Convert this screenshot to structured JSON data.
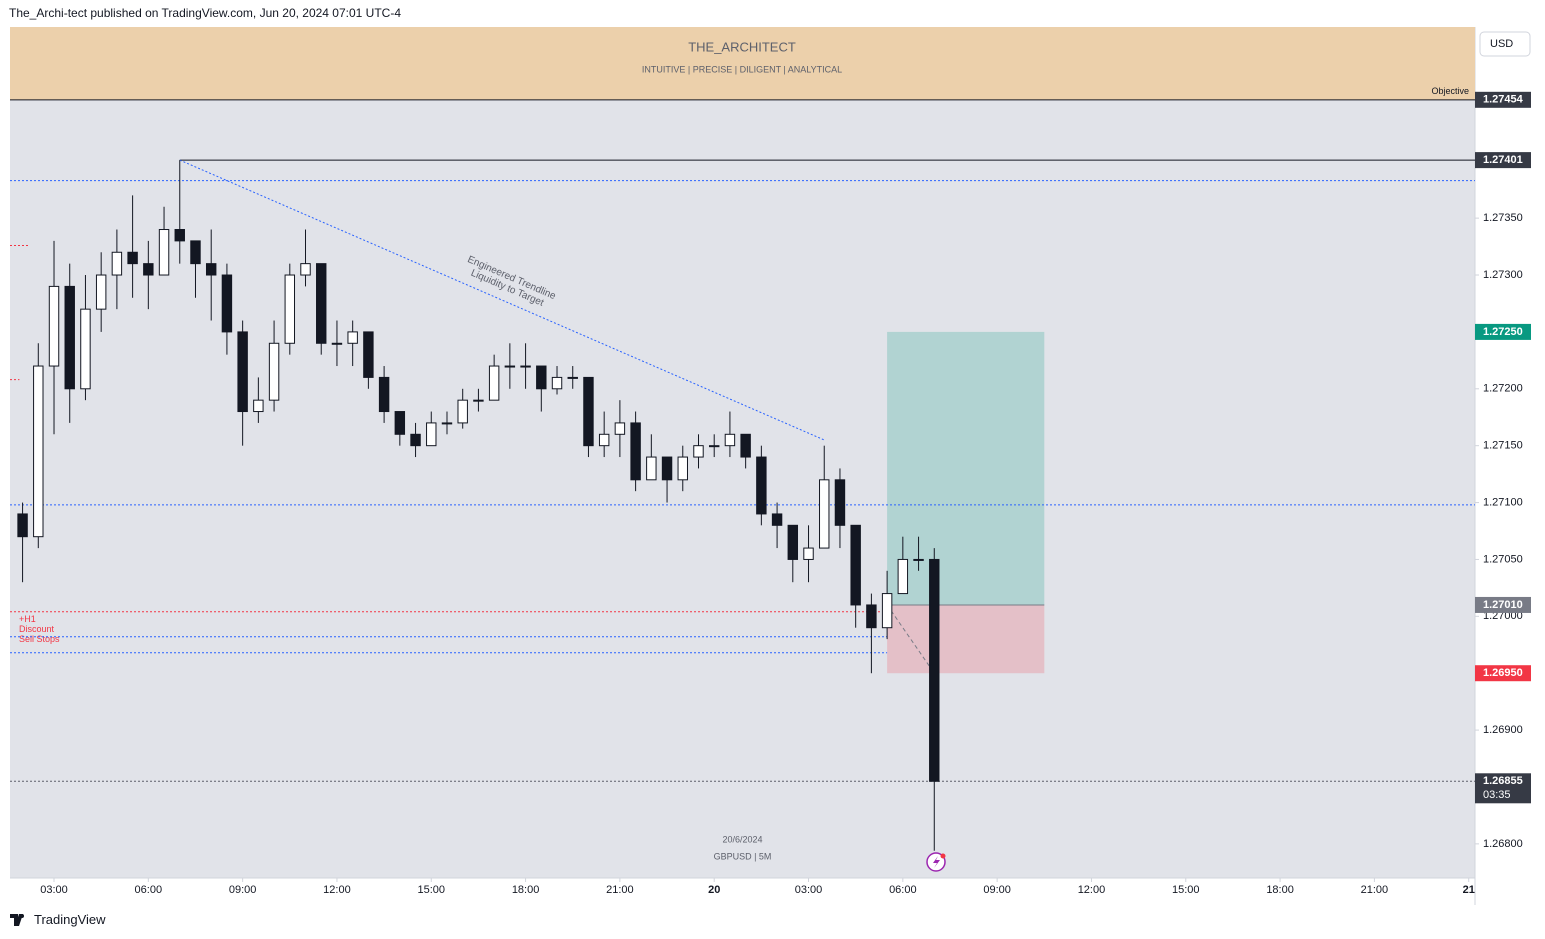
{
  "header": {
    "text": "The_Archi-tect published on TradingView.com, Jun 20, 2024 07:01 UTC-4"
  },
  "footer": {
    "brand": "TradingView"
  },
  "chart_data": {
    "type": "candlestick",
    "title": "THE_ARCHITECT",
    "subtitle": "INTUITIVE | PRECISE | DILIGENT | ANALYTICAL",
    "currency": "USD",
    "symbol": "GBPUSD | 5M",
    "date": "20/6/2024",
    "up_color": "#ffffff",
    "down_color": "#131722",
    "x": [
      2,
      2.5,
      3,
      3.5,
      4,
      4.5,
      5,
      5.5,
      6,
      6.5,
      7,
      7.5,
      8,
      8.5,
      9,
      9.5,
      10,
      10.5,
      11,
      11.5,
      12,
      12.5,
      13,
      13.5,
      14,
      14.5,
      15,
      15.5,
      16,
      16.5,
      17,
      17.5,
      18,
      18.5,
      19,
      19.5,
      20,
      20.5,
      21,
      21.5,
      22,
      22.5,
      23,
      23.5,
      24,
      24.5,
      25,
      25.5,
      26,
      26.5,
      27,
      27.5,
      28,
      28.5,
      29,
      29.5,
      30,
      30.5,
      31
    ],
    "open": [
      1.2709,
      1.2707,
      1.2722,
      1.2729,
      1.272,
      1.2727,
      1.273,
      1.2732,
      1.2731,
      1.273,
      1.2734,
      1.2733,
      1.2731,
      1.273,
      1.2725,
      1.2718,
      1.2719,
      1.2724,
      1.273,
      1.2731,
      1.2724,
      1.2724,
      1.2725,
      1.2721,
      1.2718,
      1.2716,
      1.2715,
      1.2717,
      1.2717,
      1.2719,
      1.2719,
      1.2722,
      1.2722,
      1.2722,
      1.272,
      1.2721,
      1.2721,
      1.2715,
      1.2716,
      1.2717,
      1.2712,
      1.2714,
      1.2712,
      1.2714,
      1.2715,
      1.2715,
      1.2716,
      1.2714,
      1.2709,
      1.2708,
      1.2705,
      1.2706,
      1.2712,
      1.2708,
      1.2701,
      1.2699,
      1.2702,
      1.2705,
      1.2705
    ],
    "high": [
      1.271,
      1.2724,
      1.2733,
      1.2731,
      1.273,
      1.2732,
      1.2734,
      1.2737,
      1.2733,
      1.2736,
      1.27401,
      1.2733,
      1.2734,
      1.2731,
      1.2726,
      1.2721,
      1.2726,
      1.2731,
      1.2734,
      1.2731,
      1.2726,
      1.2726,
      1.2725,
      1.2722,
      1.2718,
      1.2717,
      1.2718,
      1.2718,
      1.272,
      1.272,
      1.2723,
      1.2724,
      1.2724,
      1.2722,
      1.2722,
      1.2722,
      1.2721,
      1.2718,
      1.2719,
      1.2718,
      1.2716,
      1.2714,
      1.2715,
      1.2716,
      1.2716,
      1.2718,
      1.2716,
      1.2715,
      1.271,
      1.2708,
      1.2708,
      1.2715,
      1.2713,
      1.2708,
      1.2702,
      1.2704,
      1.2707,
      1.2707,
      1.2706
    ],
    "low": [
      1.2703,
      1.2706,
      1.2716,
      1.2717,
      1.2719,
      1.2725,
      1.2727,
      1.2728,
      1.2727,
      1.273,
      1.2731,
      1.2728,
      1.2726,
      1.2723,
      1.2715,
      1.2717,
      1.2718,
      1.2723,
      1.2729,
      1.2723,
      1.2722,
      1.2722,
      1.272,
      1.2717,
      1.2715,
      1.2714,
      1.2715,
      1.2716,
      1.27165,
      1.2718,
      1.2719,
      1.272,
      1.272,
      1.2718,
      1.27195,
      1.272,
      1.2714,
      1.2714,
      1.2714,
      1.2711,
      1.2712,
      1.271,
      1.2711,
      1.2713,
      1.2714,
      1.2714,
      1.2713,
      1.2708,
      1.2706,
      1.2703,
      1.2703,
      1.2706,
      1.2706,
      1.2699,
      1.2695,
      1.2698,
      1.2702,
      1.2704,
      1.26794
    ],
    "close": [
      1.2707,
      1.2722,
      1.2729,
      1.272,
      1.2727,
      1.273,
      1.2732,
      1.2731,
      1.273,
      1.2734,
      1.2733,
      1.2731,
      1.273,
      1.2725,
      1.2718,
      1.2719,
      1.2724,
      1.273,
      1.2731,
      1.2724,
      1.2724,
      1.2725,
      1.2721,
      1.2718,
      1.2716,
      1.2715,
      1.2717,
      1.2717,
      1.2719,
      1.2719,
      1.2722,
      1.2722,
      1.2722,
      1.272,
      1.2721,
      1.2721,
      1.2715,
      1.2716,
      1.2717,
      1.2712,
      1.2714,
      1.2712,
      1.2714,
      1.2715,
      1.2715,
      1.2716,
      1.2714,
      1.2709,
      1.2708,
      1.2705,
      1.2706,
      1.2712,
      1.2708,
      1.2701,
      1.2699,
      1.2702,
      1.2705,
      1.2705,
      1.26855
    ],
    "xlim": [
      1.6,
      48.2
    ],
    "xticks": [
      {
        "value": 3,
        "label": "03:00"
      },
      {
        "value": 6,
        "label": "06:00"
      },
      {
        "value": 9,
        "label": "09:00"
      },
      {
        "value": 12,
        "label": "12:00"
      },
      {
        "value": 15,
        "label": "15:00"
      },
      {
        "value": 18,
        "label": "18:00"
      },
      {
        "value": 21,
        "label": "21:00"
      },
      {
        "value": 24,
        "label": "20"
      },
      {
        "value": 27,
        "label": "03:00"
      },
      {
        "value": 30,
        "label": "06:00"
      },
      {
        "value": 33,
        "label": "09:00"
      },
      {
        "value": 36,
        "label": "12:00"
      },
      {
        "value": 39,
        "label": "15:00"
      },
      {
        "value": 42,
        "label": "18:00"
      },
      {
        "value": 45,
        "label": "21:00"
      },
      {
        "value": 48,
        "label": "21"
      }
    ],
    "ylim": [
      1.2677,
      1.27518
    ],
    "yticks": [
      {
        "value": 1.268,
        "label": "1.26800"
      },
      {
        "value": 1.2685,
        "label": "1.26850"
      },
      {
        "value": 1.269,
        "label": "1.26900"
      },
      {
        "value": 1.2695,
        "label": "1.26950"
      },
      {
        "value": 1.27,
        "label": "1.27000"
      },
      {
        "value": 1.2705,
        "label": "1.27050"
      },
      {
        "value": 1.271,
        "label": "1.27100"
      },
      {
        "value": 1.2715,
        "label": "1.27150"
      },
      {
        "value": 1.272,
        "label": "1.27200"
      },
      {
        "value": 1.2725,
        "label": "1.27250"
      },
      {
        "value": 1.273,
        "label": "1.27300"
      },
      {
        "value": 1.2735,
        "label": "1.27350"
      }
    ],
    "levels": [
      {
        "price": 1.27454,
        "color": "#131722",
        "dashed": false,
        "badge": "#363a45",
        "note": "Objective"
      },
      {
        "price": 1.27401,
        "color": "#131722",
        "dashed": false,
        "from": 7,
        "badge": "#363a45"
      },
      {
        "price": 1.27383,
        "color": "#2962ff",
        "dashed": true
      },
      {
        "price": 1.27326,
        "color": "#f23645",
        "dashed": true,
        "to": 2.2
      },
      {
        "price": 1.27208,
        "color": "#f23645",
        "dashed": true,
        "to": 1.9
      },
      {
        "price": 1.27098,
        "color": "#2962ff",
        "dashed": true
      },
      {
        "price": 1.27004,
        "color": "#f23645",
        "dashed": true,
        "to": 29.5,
        "note_lines": [
          "+H1",
          "Discount",
          "Sell Stops"
        ]
      },
      {
        "price": 1.26982,
        "color": "#2962ff",
        "dashed": true,
        "to": 29.5
      },
      {
        "price": 1.26968,
        "color": "#2962ff",
        "dashed": true,
        "to": 29.5
      },
      {
        "price": 1.26855,
        "color": "#5d606b",
        "dashed": true,
        "badge": "#363a45",
        "countdown": "03:35"
      }
    ],
    "trendline": {
      "x": [
        7,
        27.5
      ],
      "y": [
        1.27401,
        1.27155
      ],
      "color": "#2962ff",
      "text_lines": [
        "Engineered Trendline",
        "Liquidity to Target"
      ]
    },
    "position": {
      "from": 29.5,
      "to": 34.5,
      "entry": {
        "value": 1.2701,
        "label": "1.27010"
      },
      "target": {
        "value": 1.2725,
        "label": "1.27250"
      },
      "stop": {
        "value": 1.2695,
        "label": "1.26950"
      },
      "stop_time": 31
    }
  }
}
